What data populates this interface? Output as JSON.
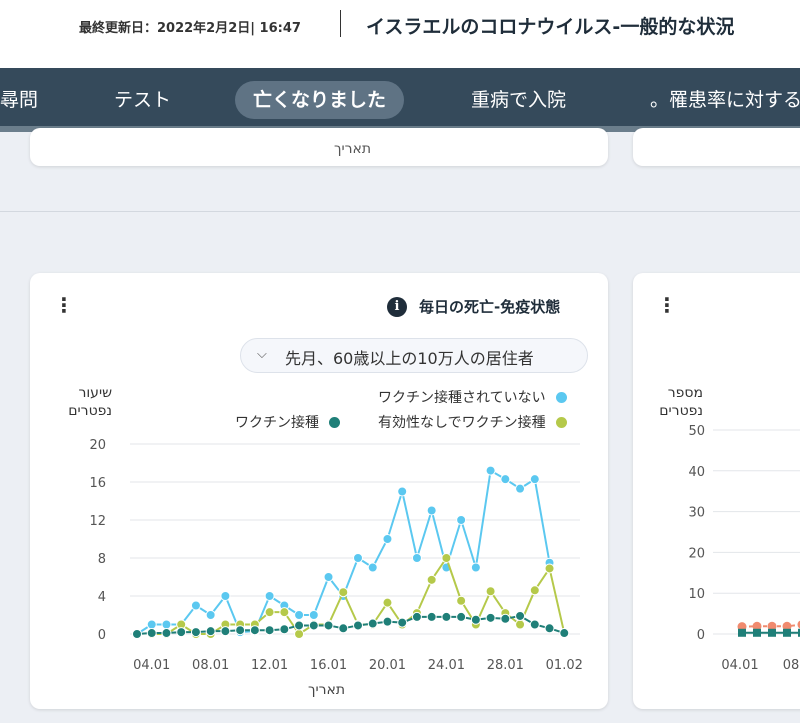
{
  "header": {
    "updated": "最終更新日：2022年2月2日| 16:47",
    "title": "イスラエルのコロナウイルス-一般的な状況"
  },
  "nav": {
    "tabs": [
      {
        "label": "尋問"
      },
      {
        "label": "テスト"
      },
      {
        "label": "亡くなりました"
      },
      {
        "label": "重病で入院"
      },
      {
        "label": "。罹患率に対する"
      }
    ],
    "active_index": 2
  },
  "prev_row": {
    "axis_label": "תאריך"
  },
  "main_chart": {
    "title": "毎日の死亡-免疫状態",
    "filter_label": "先月、60歳以上の10万人の居住者",
    "ylabel": "שיעור נפטרים",
    "xlabel": "תאריך"
  },
  "side_chart": {
    "ylabel": "מספר נפטרים",
    "yticks": [
      "50",
      "40",
      "30",
      "20",
      "10",
      "0"
    ],
    "xticks": [
      "04.01",
      "08"
    ]
  },
  "chart_data": [
    {
      "type": "line",
      "title": "毎日の死亡-免疫状態",
      "xlabel": "תאריך",
      "ylabel": "שיעור נפטרים",
      "ylim": [
        0,
        20
      ],
      "yticks": [
        0,
        4,
        8,
        12,
        16,
        20
      ],
      "x": [
        "03.01",
        "04.01",
        "05.01",
        "06.01",
        "07.01",
        "08.01",
        "09.01",
        "10.01",
        "11.01",
        "12.01",
        "13.01",
        "14.01",
        "15.01",
        "16.01",
        "17.01",
        "18.01",
        "19.01",
        "20.01",
        "21.01",
        "22.01",
        "23.01",
        "24.01",
        "25.01",
        "26.01",
        "27.01",
        "28.01",
        "29.01",
        "30.01",
        "31.01",
        "01.02",
        "02.02"
      ],
      "xtick_labels": [
        "04.01",
        "08.01",
        "12.01",
        "16.01",
        "20.01",
        "24.01",
        "28.01",
        "01.02"
      ],
      "legend": "top",
      "grid": true,
      "series": [
        {
          "name": "ワクチン接種されていない",
          "color": "#5bc8f0",
          "values": [
            0,
            1,
            1,
            1,
            3,
            2,
            4,
            0.2,
            0.3,
            4,
            3,
            2,
            2,
            6,
            4,
            8,
            7,
            10,
            15,
            8,
            13,
            7,
            12,
            7,
            17.2,
            16.3,
            15.3,
            16.3,
            7.5,
            null,
            null
          ]
        },
        {
          "name": "有効性なしでワクチン接種",
          "color": "#b5c94a",
          "values": [
            null,
            0,
            0,
            1,
            0,
            0,
            1,
            1,
            1,
            2.3,
            2.3,
            0,
            1,
            1,
            4.4,
            1,
            1,
            3.3,
            1,
            2.2,
            5.7,
            8,
            3.5,
            1,
            4.5,
            2.2,
            1,
            4.6,
            6.9,
            0.1,
            null
          ]
        },
        {
          "name": "ワクチン接種",
          "color": "#1f7f78",
          "values": [
            0,
            0.1,
            0.1,
            0.2,
            0.2,
            0.3,
            0.3,
            0.4,
            0.4,
            0.4,
            0.5,
            0.9,
            0.9,
            0.9,
            0.6,
            0.9,
            1.1,
            1.3,
            1.2,
            1.8,
            1.8,
            1.8,
            1.8,
            1.5,
            1.7,
            1.6,
            1.9,
            1,
            0.6,
            0.1,
            null
          ]
        }
      ]
    },
    {
      "type": "line",
      "ylabel": "מספר נפטרים",
      "ylim": [
        0,
        50
      ],
      "yticks": [
        0,
        10,
        20,
        30,
        40,
        50
      ],
      "x": [
        "04.01",
        "05.01",
        "06.01",
        "07.01",
        "08.01"
      ],
      "series": [
        {
          "color": "#f08a6e",
          "values": [
            1.8,
            1.9,
            1.9,
            1.9,
            2.3
          ]
        },
        {
          "color": "#1f7f78",
          "values": [
            0.3,
            0.3,
            0.3,
            0.3,
            0.3
          ]
        }
      ]
    }
  ]
}
